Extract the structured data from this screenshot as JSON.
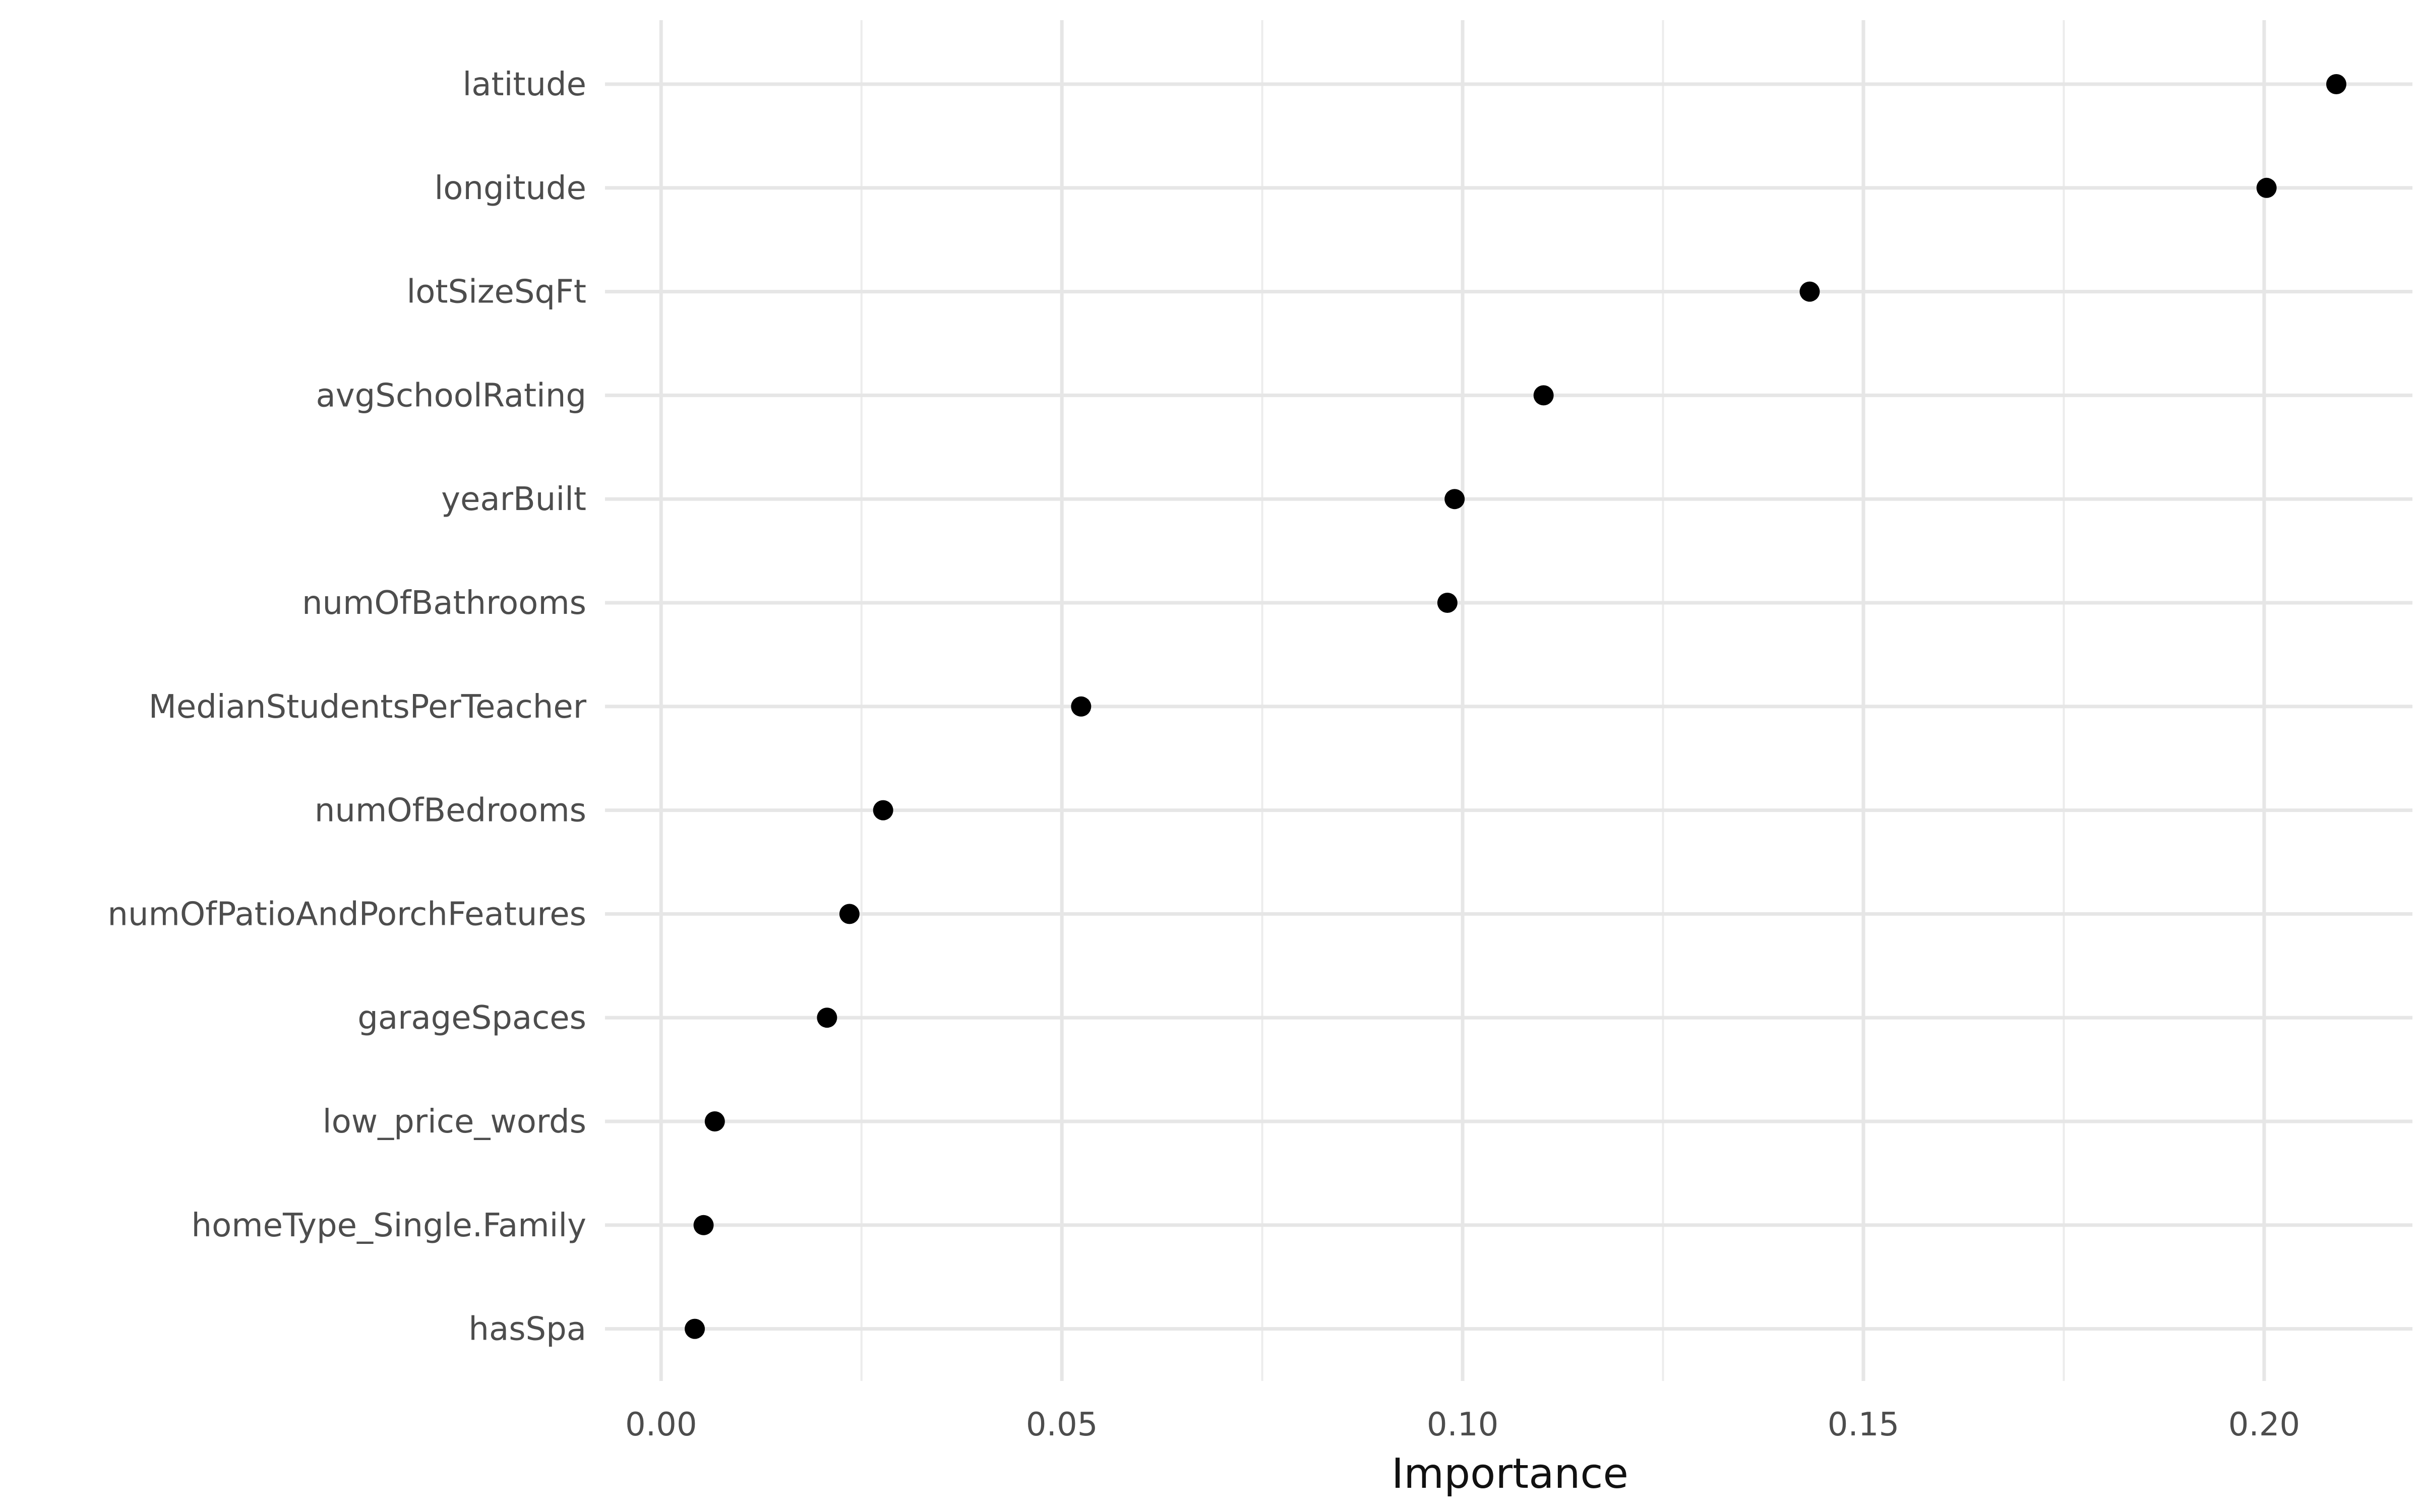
{
  "chart_data": {
    "type": "scatter",
    "title": "",
    "xlabel": "Importance",
    "ylabel": "",
    "xlim": [
      -0.007,
      0.2185
    ],
    "x_ticks": [
      {
        "value": 0.0,
        "label": "0.00"
      },
      {
        "value": 0.05,
        "label": "0.05"
      },
      {
        "value": 0.1,
        "label": "0.10"
      },
      {
        "value": 0.15,
        "label": "0.15"
      },
      {
        "value": 0.2,
        "label": "0.20"
      }
    ],
    "x_minor": [
      0.025,
      0.075,
      0.125,
      0.175
    ],
    "grid": true,
    "color": "#000000",
    "points": [
      {
        "label": "latitude",
        "value": 0.209
      },
      {
        "label": "longitude",
        "value": 0.2003
      },
      {
        "label": "lotSizeSqFt",
        "value": 0.1433
      },
      {
        "label": "avgSchoolRating",
        "value": 0.1101
      },
      {
        "label": "yearBuilt",
        "value": 0.099
      },
      {
        "label": "numOfBathrooms",
        "value": 0.0981
      },
      {
        "label": "MedianStudentsPerTeacher",
        "value": 0.0524
      },
      {
        "label": "numOfBedrooms",
        "value": 0.0277
      },
      {
        "label": "numOfPatioAndPorchFeatures",
        "value": 0.0235
      },
      {
        "label": "garageSpaces",
        "value": 0.0207
      },
      {
        "label": "low_price_words",
        "value": 0.0067
      },
      {
        "label": "homeType_Single.Family",
        "value": 0.0053
      },
      {
        "label": "hasSpa",
        "value": 0.0042
      }
    ]
  }
}
